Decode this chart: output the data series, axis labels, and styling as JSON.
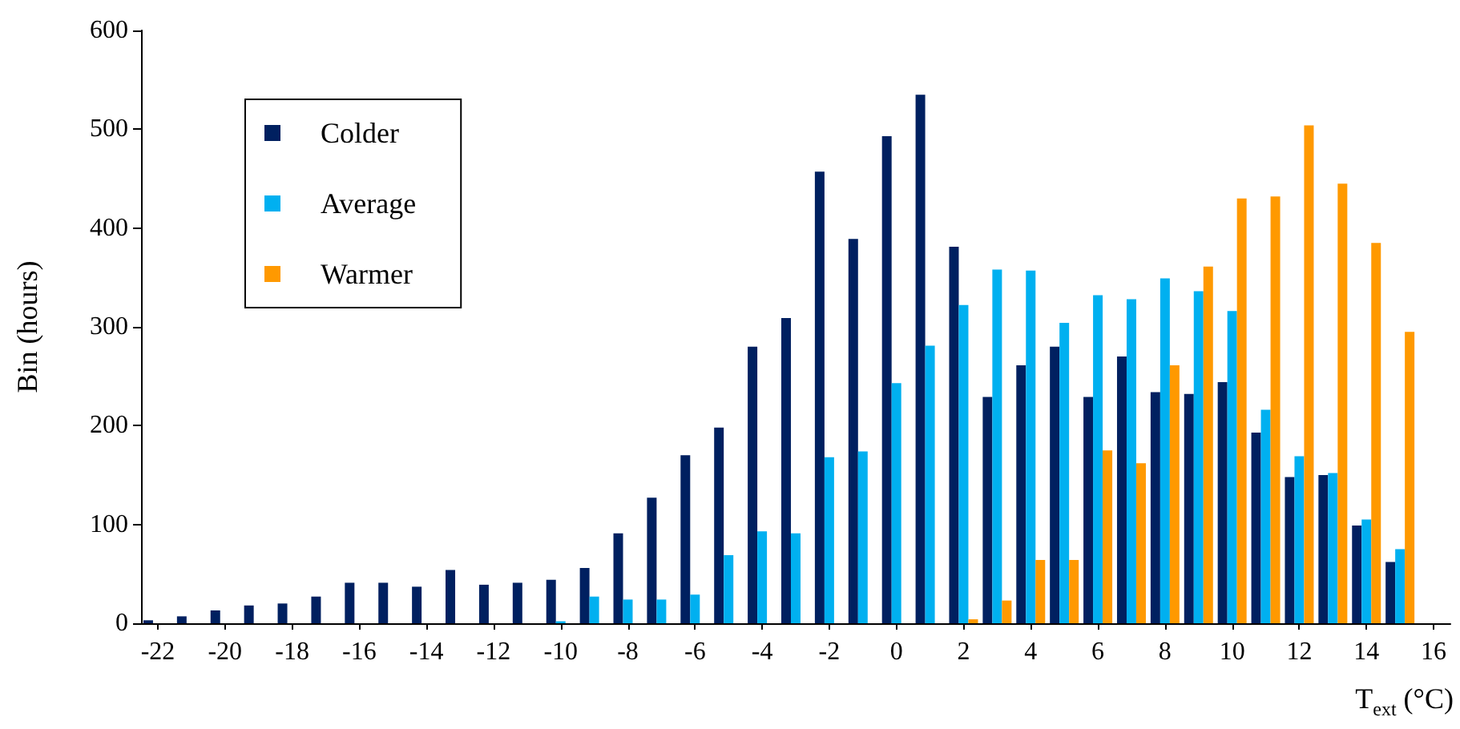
{
  "chart_data": {
    "type": "bar",
    "xlabel": "T$_{ext}$ (°C)",
    "ylabel": "Bin (hours)",
    "x": [
      -22,
      -21,
      -20,
      -19,
      -18,
      -17,
      -16,
      -15,
      -14,
      -13,
      -12,
      -11,
      -10,
      -9,
      -8,
      -7,
      -6,
      -5,
      -4,
      -3,
      -2,
      -1,
      0,
      1,
      2,
      3,
      4,
      5,
      6,
      7,
      8,
      9,
      10,
      11,
      12,
      13,
      14,
      15
    ],
    "series": [
      {
        "name": "Colder",
        "color": "#002060",
        "values": [
          3,
          7,
          13,
          18,
          20,
          27,
          41,
          41,
          37,
          54,
          39,
          41,
          44,
          56,
          91,
          127,
          170,
          198,
          280,
          309,
          457,
          389,
          493,
          535,
          381,
          229,
          261,
          280,
          229,
          270,
          234,
          232,
          244,
          193,
          148,
          150,
          99,
          62
        ]
      },
      {
        "name": "Average",
        "color": "#00b0f0",
        "values": [
          null,
          null,
          null,
          null,
          null,
          null,
          null,
          null,
          null,
          null,
          null,
          null,
          2,
          27,
          24,
          24,
          29,
          69,
          93,
          91,
          168,
          174,
          243,
          281,
          322,
          358,
          357,
          304,
          332,
          328,
          349,
          336,
          316,
          216,
          169,
          152,
          105,
          75
        ]
      },
      {
        "name": "Warmer",
        "color": "#ff9900",
        "values": [
          null,
          null,
          null,
          null,
          null,
          null,
          null,
          null,
          null,
          null,
          null,
          null,
          null,
          null,
          null,
          null,
          null,
          null,
          null,
          null,
          null,
          null,
          null,
          null,
          4,
          23,
          64,
          64,
          175,
          162,
          261,
          361,
          430,
          432,
          504,
          445,
          385,
          295
        ]
      }
    ],
    "xlim": [
      -22.5,
      16.5
    ],
    "xticks": [
      -22,
      -20,
      -18,
      -16,
      -14,
      -12,
      -10,
      -8,
      -6,
      -4,
      -2,
      0,
      2,
      4,
      6,
      8,
      10,
      12,
      14,
      16
    ],
    "ylim": [
      0,
      600
    ],
    "yticks": [
      0,
      100,
      200,
      300,
      400,
      500,
      600
    ],
    "grid": false,
    "legend": "top left"
  }
}
